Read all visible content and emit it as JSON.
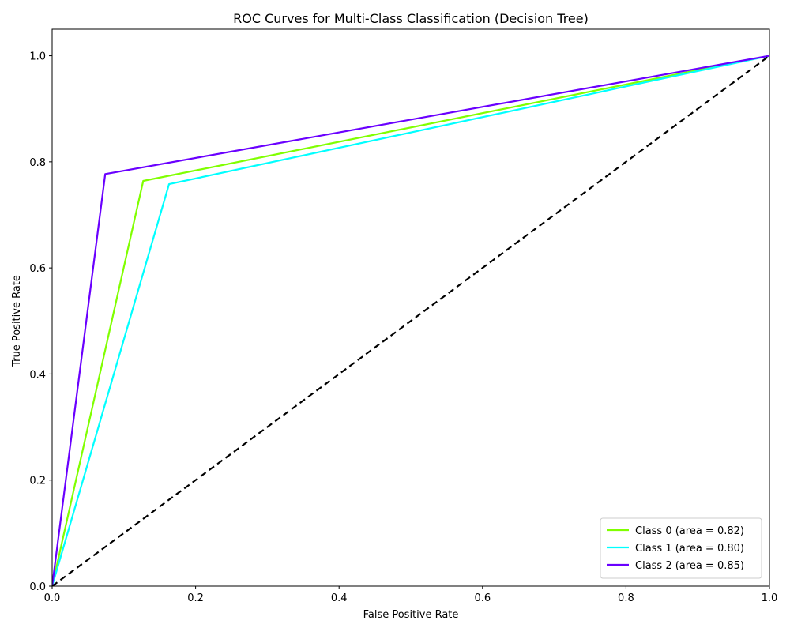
{
  "chart_data": {
    "type": "line",
    "title": "ROC Curves for Multi-Class Classification (Decision Tree)",
    "xlabel": "False Positive Rate",
    "ylabel": "True Positive Rate",
    "xlim": [
      0.0,
      1.0
    ],
    "ylim": [
      0.0,
      1.05
    ],
    "x_ticks": [
      0.0,
      0.2,
      0.4,
      0.6,
      0.8,
      1.0
    ],
    "x_tick_labels": [
      "0.0",
      "0.2",
      "0.4",
      "0.6",
      "0.8",
      "1.0"
    ],
    "y_ticks": [
      0.0,
      0.2,
      0.4,
      0.6,
      0.8,
      1.0
    ],
    "y_tick_labels": [
      "0.0",
      "0.2",
      "0.4",
      "0.6",
      "0.8",
      "1.0"
    ],
    "grid": false,
    "legend_position": "lower-right",
    "series": [
      {
        "name": "Class 0 (area = 0.82)",
        "color": "#80ff00",
        "x": [
          0.0,
          0.127,
          1.0
        ],
        "y": [
          0.0,
          0.764,
          1.0
        ]
      },
      {
        "name": "Class 1 (area = 0.80)",
        "color": "#00ffff",
        "x": [
          0.0,
          0.163,
          1.0
        ],
        "y": [
          0.0,
          0.758,
          1.0
        ]
      },
      {
        "name": "Class 2 (area = 0.85)",
        "color": "#6a00ff",
        "x": [
          0.0,
          0.074,
          1.0
        ],
        "y": [
          0.0,
          0.777,
          1.0
        ]
      }
    ],
    "reference_line": {
      "color": "#000000",
      "style": "dashed",
      "x": [
        0.0,
        1.0
      ],
      "y": [
        0.0,
        1.0
      ]
    }
  }
}
